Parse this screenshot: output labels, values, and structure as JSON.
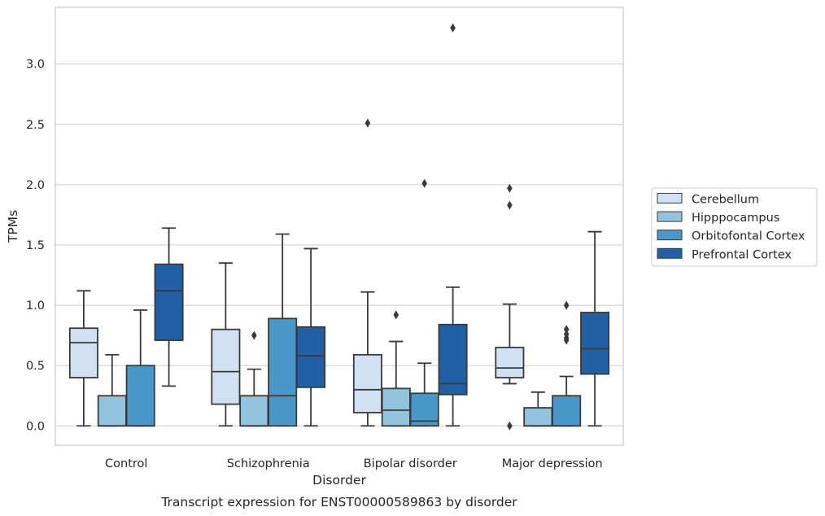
{
  "chart_data": {
    "type": "box",
    "caption": "Transcript expression for ENST00000589863 by disorder",
    "xlabel": "Disorder",
    "ylabel": "TPMs",
    "ylim": [
      -0.16,
      3.47
    ],
    "yticks": [
      "0.0",
      "0.5",
      "1.0",
      "1.5",
      "2.0",
      "2.5",
      "3.0"
    ],
    "grid": true,
    "legend_position": "right",
    "categories": [
      "Control",
      "Schizophrenia",
      "Bipolar disorder",
      "Major depression"
    ],
    "series": [
      {
        "name": "Cerebellum",
        "color": "#cfe1f2",
        "boxes": [
          {
            "q1": 0.4,
            "median": 0.69,
            "q3": 0.81,
            "whislo": 0.0,
            "whishi": 1.12,
            "fliers": []
          },
          {
            "q1": 0.18,
            "median": 0.45,
            "q3": 0.8,
            "whislo": 0.0,
            "whishi": 1.35,
            "fliers": []
          },
          {
            "q1": 0.11,
            "median": 0.3,
            "q3": 0.59,
            "whislo": 0.0,
            "whishi": 1.11,
            "fliers": [
              2.51
            ]
          },
          {
            "q1": 0.4,
            "median": 0.48,
            "q3": 0.65,
            "whislo": 0.35,
            "whishi": 1.01,
            "fliers": [
              0.0,
              1.83,
              1.97
            ]
          }
        ]
      },
      {
        "name": "Hipppocampus",
        "color": "#93c4de",
        "boxes": [
          {
            "q1": 0.0,
            "median": 0.0,
            "q3": 0.25,
            "whislo": 0.0,
            "whishi": 0.59,
            "fliers": []
          },
          {
            "q1": 0.0,
            "median": 0.0,
            "q3": 0.25,
            "whislo": 0.0,
            "whishi": 0.47,
            "fliers": [
              0.75
            ]
          },
          {
            "q1": 0.0,
            "median": 0.13,
            "q3": 0.31,
            "whislo": 0.0,
            "whishi": 0.7,
            "fliers": [
              0.92
            ]
          },
          {
            "q1": 0.0,
            "median": 0.0,
            "q3": 0.15,
            "whislo": 0.0,
            "whishi": 0.28,
            "fliers": []
          }
        ]
      },
      {
        "name": "Orbitofontal Cortex",
        "color": "#4a98c9",
        "boxes": [
          {
            "q1": 0.0,
            "median": 0.0,
            "q3": 0.5,
            "whislo": 0.0,
            "whishi": 0.96,
            "fliers": []
          },
          {
            "q1": 0.0,
            "median": 0.25,
            "q3": 0.89,
            "whislo": 0.0,
            "whishi": 1.59,
            "fliers": []
          },
          {
            "q1": 0.0,
            "median": 0.04,
            "q3": 0.27,
            "whislo": 0.0,
            "whishi": 0.52,
            "fliers": [
              2.01
            ]
          },
          {
            "q1": 0.0,
            "median": 0.0,
            "q3": 0.25,
            "whislo": 0.0,
            "whishi": 0.41,
            "fliers": [
              0.71,
              0.73,
              0.76,
              1.0,
              0.8
            ]
          }
        ]
      },
      {
        "name": "Prefrontal Cortex",
        "color": "#2260a6",
        "boxes": [
          {
            "q1": 0.71,
            "median": 1.12,
            "q3": 1.34,
            "whislo": 0.33,
            "whishi": 1.64,
            "fliers": []
          },
          {
            "q1": 0.32,
            "median": 0.58,
            "q3": 0.82,
            "whislo": 0.0,
            "whishi": 1.47,
            "fliers": []
          },
          {
            "q1": 0.26,
            "median": 0.35,
            "q3": 0.84,
            "whislo": 0.0,
            "whishi": 1.15,
            "fliers": [
              3.3
            ]
          },
          {
            "q1": 0.43,
            "median": 0.64,
            "q3": 0.94,
            "whislo": 0.0,
            "whishi": 1.61,
            "fliers": []
          }
        ]
      }
    ]
  }
}
